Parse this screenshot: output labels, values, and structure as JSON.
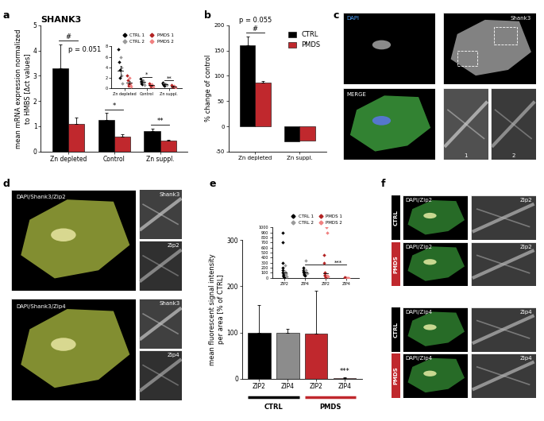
{
  "chart_data": [
    {
      "panel": "a",
      "type": "bar",
      "title": "SHANK3",
      "y_label": "mean mRNA expression normalized\nto HMBS [Δct values]",
      "categories": [
        "Zn depleted",
        "Control",
        "Zn suppl."
      ],
      "ylim": [
        0,
        5
      ],
      "yticks": [
        0,
        1,
        2,
        3,
        4,
        5
      ],
      "series": [
        {
          "color": "#000000",
          "values": [
            3.3,
            1.25,
            0.8
          ],
          "errors": [
            0.95,
            0.28,
            0.12
          ]
        },
        {
          "color": "#c0282d",
          "values": [
            1.1,
            0.6,
            0.42
          ],
          "errors": [
            0.25,
            0.08,
            0.05
          ]
        }
      ],
      "annotations": [
        {
          "text": "#",
          "x": 0,
          "y": 4.4,
          "span": [
            -0.2,
            0.2
          ]
        },
        {
          "text": "p = 0.051",
          "x": 0.35,
          "y": 3.9
        },
        {
          "text": "*",
          "x": 1,
          "y": 1.65,
          "span": [
            0.8,
            1.2
          ]
        },
        {
          "text": "**",
          "x": 2,
          "y": 1.05,
          "span": [
            1.8,
            2.2
          ]
        }
      ],
      "inset": {
        "type": "scatter",
        "legend": "top",
        "categories": [
          "Zn depleted",
          "Control",
          "Zn suppl."
        ],
        "ylim": [
          0,
          8
        ],
        "yticks": [
          0,
          2,
          4,
          6,
          8
        ],
        "series": [
          {
            "name": "CTRL 1",
            "color": "#000000",
            "marker": "diamond",
            "values": [
              [
                7.5,
                5.0,
                3.5,
                2.0
              ],
              [
                1.8,
                1.4,
                1.0,
                0.8
              ],
              [
                1.1,
                0.9,
                0.7,
                0.5
              ]
            ]
          },
          {
            "name": "CTRL 2",
            "color": "#9a9a9a",
            "marker": "diamond",
            "values": [
              [
                6.0,
                4.0,
                2.5,
                1.0
              ],
              [
                1.6,
                1.2,
                0.9,
                0.7
              ],
              [
                1.0,
                0.8,
                0.6
              ]
            ]
          },
          {
            "name": "PMDS 1",
            "color": "#b22222",
            "marker": "diamond",
            "values": [
              [
                2.5,
                1.5,
                0.8,
                0.5
              ],
              [
                0.9,
                0.6,
                0.4
              ],
              [
                0.6,
                0.4,
                0.3
              ]
            ]
          },
          {
            "name": "PMDS 2",
            "color": "#f08080",
            "marker": "diamond",
            "values": [
              [
                2.0,
                1.0,
                0.6,
                0.3
              ],
              [
                0.8,
                0.5,
                0.3
              ],
              [
                0.5,
                0.4,
                0.2
              ]
            ]
          }
        ],
        "summary": [
          {
            "values": [
              3.3,
              1.25,
              0.8
            ],
            "errors": [
              0.95,
              0.28,
              0.12
            ]
          },
          {
            "values": [
              1.1,
              0.6,
              0.42
            ],
            "errors": [
              0.25,
              0.08,
              0.05
            ]
          }
        ],
        "annotations": [
          {
            "text": "*",
            "x": 1,
            "y": 2.2,
            "span": [
              0.8,
              1.2
            ]
          },
          {
            "text": "**",
            "x": 2,
            "y": 1.5,
            "span": [
              1.8,
              2.2
            ]
          }
        ]
      }
    },
    {
      "panel": "b",
      "type": "bar",
      "legend": "upper right",
      "y_label": "% change of control",
      "categories": [
        "Zn depleted",
        "Zn suppl."
      ],
      "ylim": [
        -50,
        200
      ],
      "yticks": [
        -50,
        0,
        50,
        100,
        150,
        200
      ],
      "series": [
        {
          "name": "CTRL",
          "color": "#000000",
          "values": [
            160,
            -30
          ],
          "errors": [
            18,
            null
          ]
        },
        {
          "name": "PMDS",
          "color": "#c0282d",
          "values": [
            87,
            -28
          ],
          "errors": [
            3,
            null
          ]
        }
      ],
      "annotations": [
        {
          "text": "#",
          "x": 0,
          "y": 185,
          "span": [
            -0.2,
            0.2
          ]
        },
        {
          "text": "p = 0.055",
          "x": 0,
          "y": 203
        }
      ]
    },
    {
      "panel": "e",
      "type": "bar",
      "y_label": "mean fluorescent signal intensity\nper area [% of CTRL]",
      "categories": [
        "ZIP2",
        "ZIP4",
        "ZIP2",
        "ZIP4"
      ],
      "values": [
        100,
        100,
        98,
        2
      ],
      "errors": [
        60,
        8,
        92,
        1
      ],
      "colors": [
        "#000000",
        "#8c8c8c",
        "#c0282d",
        "#e8898b"
      ],
      "ylim": [
        0,
        300
      ],
      "yticks": [
        0,
        100,
        200,
        300
      ],
      "groups": [
        {
          "label": "CTRL",
          "positions": [
            0,
            1
          ]
        },
        {
          "label": "PMDS",
          "positions": [
            2,
            3
          ]
        }
      ],
      "annotations": [
        {
          "text": "***",
          "x": 3,
          "y": 8
        }
      ],
      "inset": {
        "type": "scatter",
        "legend": "top",
        "categories": [
          "ZIP2",
          "ZIP4",
          "ZIP2",
          "ZIP4"
        ],
        "ylim": [
          0,
          1000
        ],
        "yticks": [
          0,
          100,
          200,
          300,
          400,
          500,
          600,
          700,
          800,
          900,
          1000
        ],
        "series": [
          {
            "name": "CTRL 1",
            "color": "#000000",
            "marker": "diamond",
            "values": [
              [
                900,
                700,
                300,
                200,
                150,
                100,
                80,
                60,
                50,
                40,
                30,
                20
              ],
              [
                200,
                150,
                120,
                100,
                90,
                80,
                60,
                50
              ],
              [],
              []
            ]
          },
          {
            "name": "CTRL 2",
            "color": "#9a9a9a",
            "marker": "diamond",
            "values": [
              [
                250,
                120,
                90,
                70,
                40,
                30
              ],
              [
                350,
                150,
                110,
                95,
                85
              ],
              [],
              []
            ]
          },
          {
            "name": "PMDS 1",
            "color": "#b22222",
            "marker": "diamond",
            "values": [
              [],
              [],
              [
                450,
                300,
                100,
                60,
                40,
                20
              ],
              [
                5,
                3,
                2,
                1
              ]
            ]
          },
          {
            "name": "PMDS 2",
            "color": "#f08080",
            "marker": "diamond",
            "values": [
              [],
              [],
              [
                1000,
                900,
                50,
                30
              ],
              [
                4,
                2,
                1
              ]
            ]
          }
        ],
        "summary": [
          {
            "values": [
              100,
              100,
              98,
              2
            ]
          }
        ],
        "annotations": [
          {
            "text": "***",
            "x": 2.6,
            "y": 260,
            "span": [
              1,
              3
            ]
          }
        ]
      }
    }
  ],
  "images": [
    {
      "panel": "c",
      "tiles": [
        "DAPI",
        "Shank3",
        "MERGE",
        "1",
        "2"
      ]
    },
    {
      "panel": "d",
      "rows": [
        {
          "main": "DAPI/Shank3/Zip2",
          "zooms": [
            "Shank3",
            "Zip2"
          ]
        },
        {
          "main": "DAPI/Shank3/Zip4",
          "zooms": [
            "Shank3",
            "Zip4"
          ]
        }
      ]
    },
    {
      "panel": "f",
      "rows": [
        {
          "group": "CTRL",
          "color": "#000000",
          "main": "DAPI/Zip2",
          "zoom": "Zip2"
        },
        {
          "group": "PMDS",
          "color": "#c0282d",
          "main": "DAPI/Zip2",
          "zoom": "Zip2"
        },
        {
          "group": "CTRL",
          "color": "#000000",
          "main": "DAPI/Zip4",
          "zoom": "Zip4"
        },
        {
          "group": "PMDS",
          "color": "#c0282d",
          "main": "DAPI/Zip4",
          "zoom": "Zip4"
        }
      ]
    }
  ]
}
